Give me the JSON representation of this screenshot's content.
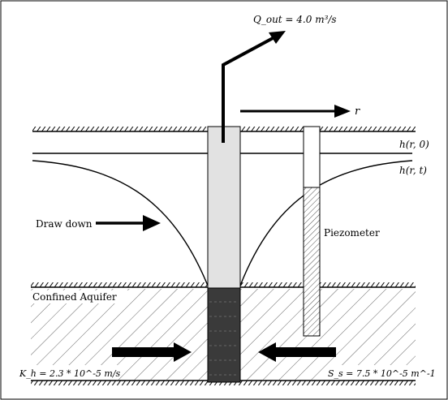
{
  "labels": {
    "q_out": "Q_out = 4.0 m³/s",
    "r_axis": "r",
    "h_r0": "h(r, 0)",
    "h_rt": "h(r, t)",
    "drawdown": "Draw down",
    "piezometer": "Piezometer",
    "aquifer": "Confined Aquifer",
    "k_h": "K_h = 2.3 * 10^-5 m/s",
    "s_s": "S_s = 7.5 * 10^-5 m^-1"
  },
  "colors": {
    "ink": "#000000",
    "casing": "#e2e2e2",
    "screen": "#3a3a3a",
    "background": "#ffffff"
  }
}
